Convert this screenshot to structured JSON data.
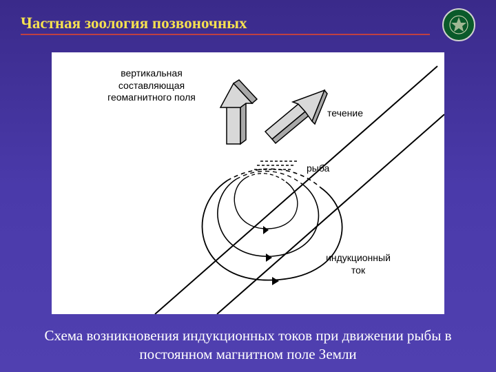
{
  "header": {
    "title": "Частная зоология позвоночных"
  },
  "diagram": {
    "type": "infographic",
    "background_color": "#ffffff",
    "labels": {
      "vertical_component": "вертикальная\nсоставляющая\nгеомагнитного поля",
      "current_flow": "течение",
      "fish": "рыба",
      "induction_current": "индукционный\nток"
    },
    "label_fontsize": 14,
    "label_color": "#000000",
    "stroke_color": "#000000",
    "dash_pattern": "5,5",
    "arrow_fill": "#c8c8c8"
  },
  "caption": "Схема возникновения индукционных токов при движении рыбы в постоянном магнитном поле Земли",
  "colors": {
    "page_bg_top": "#3a2a8a",
    "page_bg_bottom": "#5040b0",
    "title_color": "#f5e050",
    "title_underline": "#c04040",
    "caption_color": "#ffffff",
    "logo_bg": "#0a5a2a",
    "logo_border": "#d0d0d0"
  }
}
